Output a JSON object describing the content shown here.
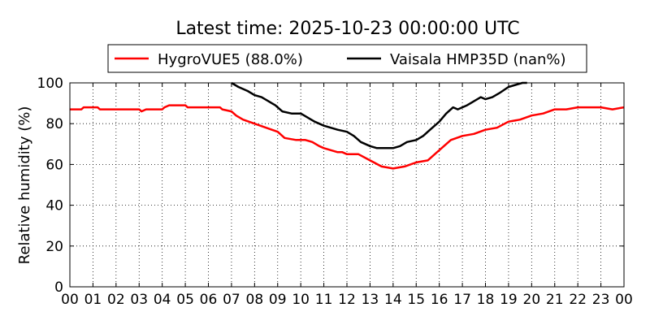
{
  "chart_data": {
    "type": "line",
    "title": "Latest time: 2025-10-23 00:00:00 UTC",
    "xlabel": "",
    "ylabel": "Relative humidity (%)",
    "xlim": [
      0,
      24
    ],
    "ylim": [
      0,
      100
    ],
    "grid": true,
    "legend_position": "top-center",
    "x_ticks": [
      "00",
      "01",
      "02",
      "03",
      "04",
      "05",
      "06",
      "07",
      "08",
      "09",
      "10",
      "11",
      "12",
      "13",
      "14",
      "15",
      "16",
      "17",
      "18",
      "19",
      "20",
      "21",
      "22",
      "23",
      "00"
    ],
    "y_ticks": [
      "0",
      "20",
      "40",
      "60",
      "80",
      "100"
    ],
    "series": [
      {
        "name": "HygroVUE5 (88.0%)",
        "color": "#ff0000",
        "x": [
          0,
          0.5,
          0.6,
          1.2,
          1.3,
          2,
          3,
          3.1,
          3.3,
          4,
          4.1,
          4.3,
          5,
          5.1,
          6,
          6.5,
          6.6,
          7,
          7.2,
          7.5,
          8,
          8.5,
          9,
          9.3,
          9.8,
          10.2,
          10.5,
          10.8,
          11,
          11.3,
          11.6,
          11.8,
          12,
          12.5,
          13,
          13.5,
          14,
          14.5,
          15,
          15.5,
          16,
          16.5,
          17,
          17.5,
          18,
          18.5,
          19,
          19.5,
          20,
          20.5,
          21,
          21.5,
          22,
          22.5,
          23,
          23.5,
          24
        ],
        "y": [
          87,
          87,
          88,
          88,
          87,
          87,
          87,
          86,
          87,
          87,
          88,
          89,
          89,
          88,
          88,
          88,
          87,
          86,
          84,
          82,
          80,
          78,
          76,
          73,
          72,
          72,
          71,
          69,
          68,
          67,
          66,
          66,
          65,
          65,
          62,
          59,
          58,
          59,
          61,
          62,
          67,
          72,
          74,
          75,
          77,
          78,
          81,
          82,
          84,
          85,
          87,
          87,
          88,
          88,
          88,
          87,
          88
        ]
      },
      {
        "name": "Vaisala HMP35D (nan%)",
        "color": "#000000",
        "x": [
          7,
          7.3,
          7.7,
          8,
          8.3,
          8.6,
          8.9,
          9.2,
          9.6,
          10,
          10.3,
          10.6,
          11,
          11.3,
          11.6,
          12,
          12.3,
          12.6,
          13,
          13.3,
          13.6,
          14,
          14.3,
          14.6,
          15,
          15.3,
          15.6,
          16,
          16.3,
          16.6,
          16.8,
          17.2,
          17.5,
          17.8,
          18,
          18.3,
          18.6,
          19,
          19.3,
          19.6,
          19.8
        ],
        "y": [
          100,
          98,
          96,
          94,
          93,
          91,
          89,
          86,
          85,
          85,
          83,
          81,
          79,
          78,
          77,
          76,
          74,
          71,
          69,
          68,
          68,
          68,
          69,
          71,
          72,
          74,
          77,
          81,
          85,
          88,
          87,
          89,
          91,
          93,
          92,
          93,
          95,
          98,
          99,
          100,
          100
        ]
      }
    ]
  }
}
